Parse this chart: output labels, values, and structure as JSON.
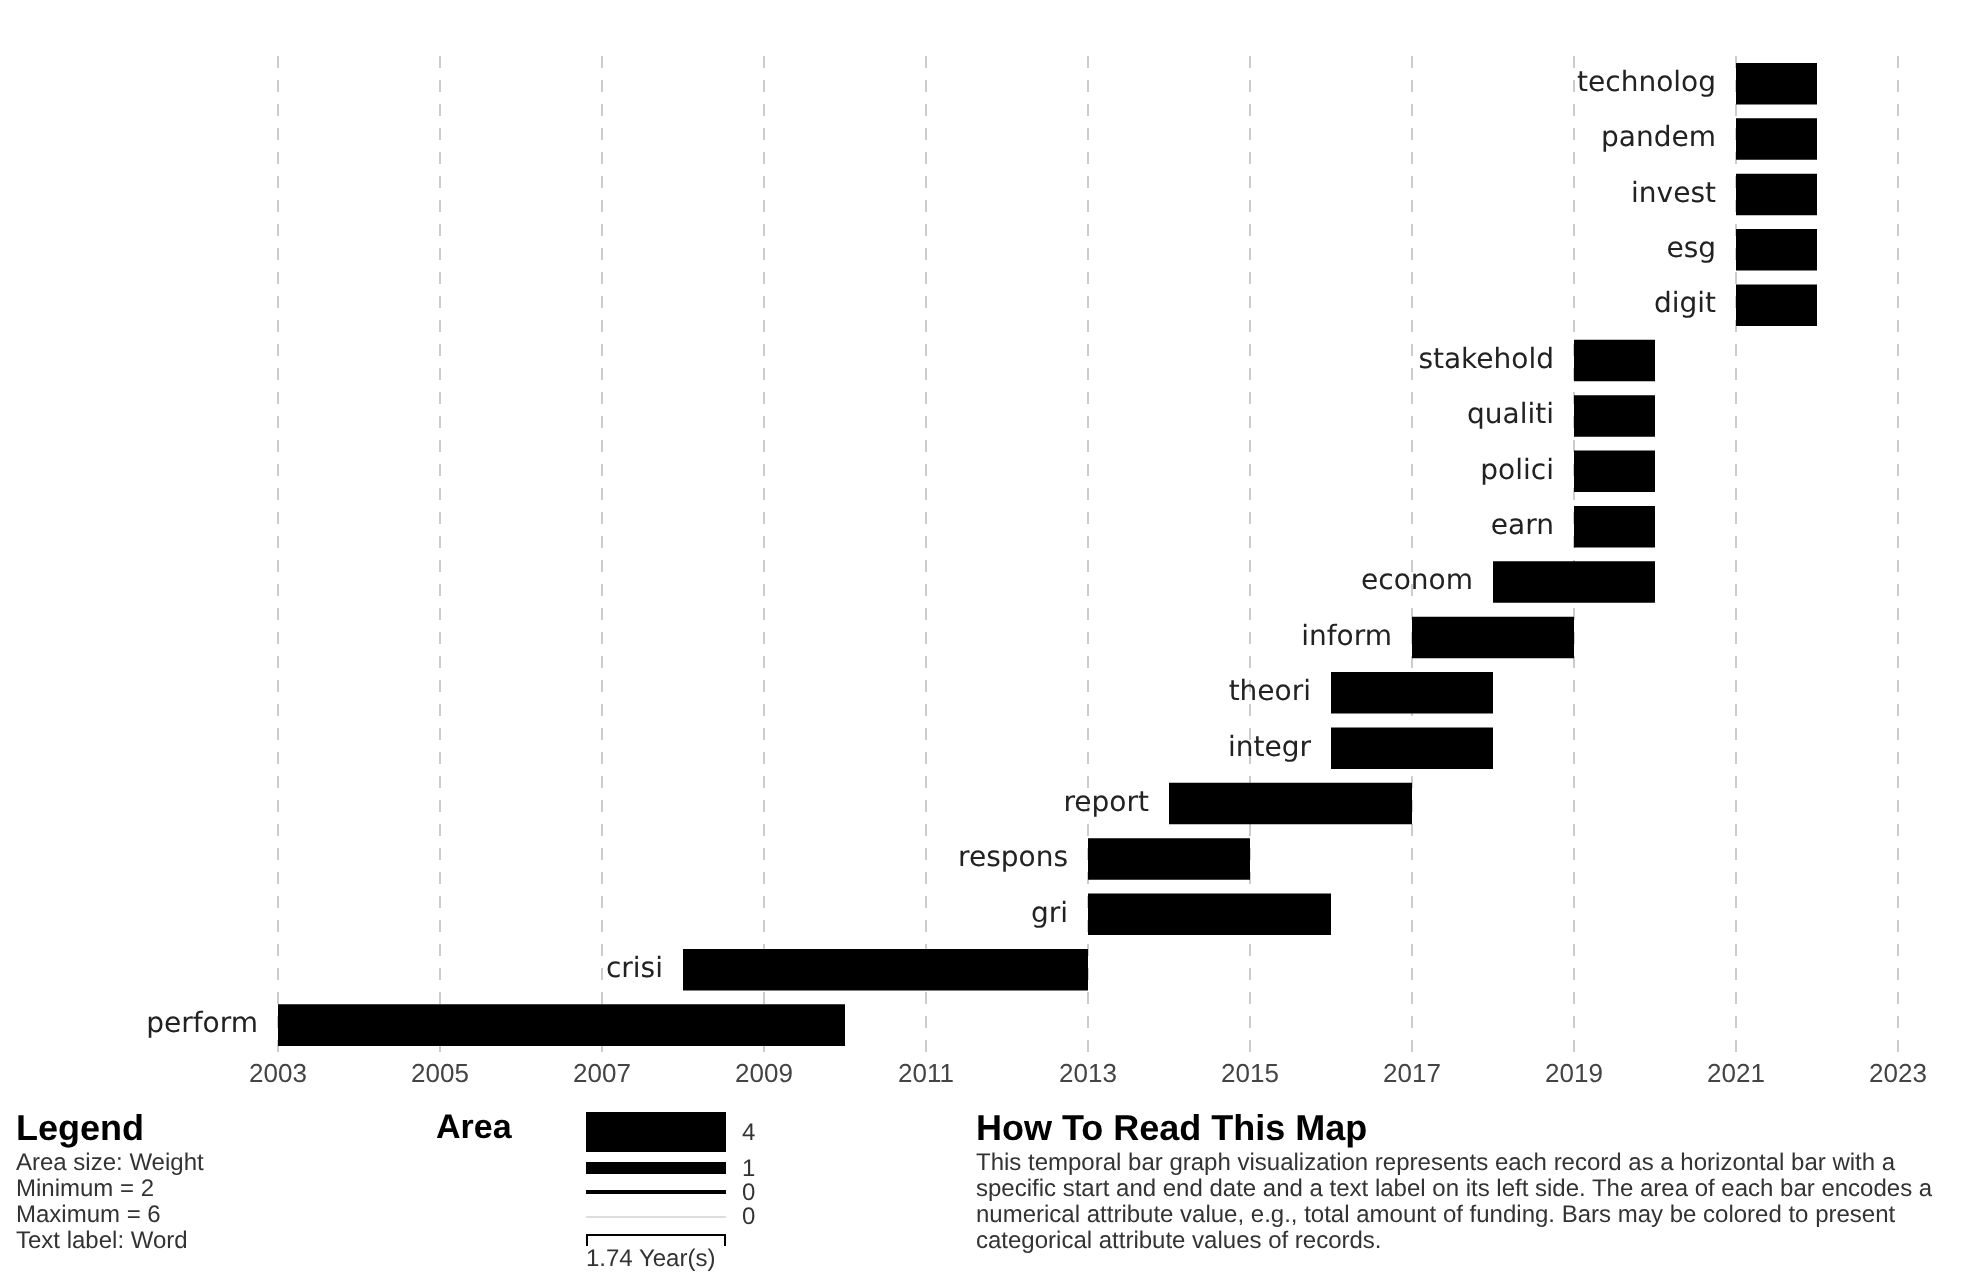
{
  "chart_data": {
    "type": "bar",
    "orientation": "horizontal",
    "categories": [
      "technolog",
      "pandem",
      "invest",
      "esg",
      "digit",
      "stakehold",
      "qualiti",
      "polici",
      "earn",
      "econom",
      "inform",
      "theori",
      "integr",
      "report",
      "respons",
      "gri",
      "crisi",
      "perform"
    ],
    "base": [
      2021,
      2021,
      2021,
      2021,
      2021,
      2019,
      2019,
      2019,
      2019,
      2018,
      2017,
      2016,
      2016,
      2014,
      2013,
      2013,
      2008,
      2003
    ],
    "values": [
      1,
      1,
      1,
      1,
      1,
      1,
      1,
      1,
      1,
      2,
      2,
      2,
      2,
      3,
      2,
      3,
      5,
      7
    ],
    "color": "#000000",
    "xlim": [
      2003,
      2023
    ],
    "xticks": [
      2003,
      2005,
      2007,
      2009,
      2011,
      2013,
      2015,
      2017,
      2019,
      2021,
      2023
    ],
    "grid": "x",
    "tick_labels": "x",
    "annotations": [
      "Legend",
      "Area size: Weight",
      "Minimum = 2",
      "Maximum = 6",
      "Text label: Word",
      "Area",
      "4",
      "1",
      "0",
      "0",
      "1.74 Year(s)",
      "How To Read This Map",
      "This temporal bar graph visualization represents each record as a horizontal bar with a specific start and end date and a text label on its left side. The area of each bar encodes a numerical attribute value, e.g., total amount of funding. Bars may be colored to present categorical attribute values of records."
    ]
  }
}
